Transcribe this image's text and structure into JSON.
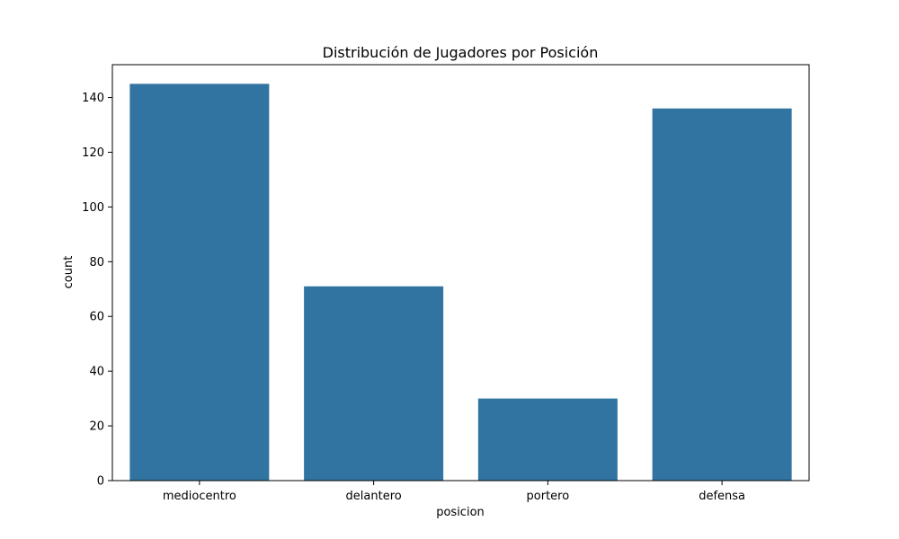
{
  "chart_data": {
    "type": "bar",
    "title": "Distribución de Jugadores por Posición",
    "xlabel": "posicion",
    "ylabel": "count",
    "categories": [
      "mediocentro",
      "delantero",
      "portero",
      "defensa"
    ],
    "values": [
      145,
      71,
      30,
      136
    ],
    "ylim": [
      0,
      152
    ],
    "yticks": [
      0,
      20,
      40,
      60,
      80,
      100,
      120,
      140
    ],
    "grid": false,
    "legend": "none",
    "bar_color": "#3274a1"
  }
}
